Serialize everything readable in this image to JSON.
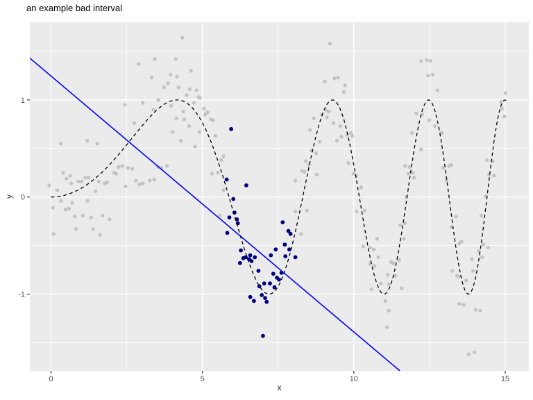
{
  "chart_data": {
    "type": "scatter",
    "title": "an example bad interval",
    "xlabel": "x",
    "ylabel": "y",
    "xlim": [
      -0.7,
      15.78
    ],
    "ylim": [
      -1.79,
      1.8
    ],
    "x_ticks": [
      0,
      5,
      10,
      15
    ],
    "x_minor_gridlines": [
      2.5,
      7.5,
      12.5
    ],
    "y_ticks": [
      -1,
      0,
      1
    ],
    "y_minor_gridlines": [
      -1.5,
      -0.5,
      0.5,
      1.5
    ],
    "grid": "on",
    "legend_position": "none",
    "colors": {
      "panel_background": "#EBEBEB",
      "gridline": "#FFFFFF",
      "tick_mark": "#333333",
      "tick_label": "#4D4D4D",
      "axis_title": "#2b2b2b",
      "title_text": "#000000",
      "background_points": "#C3C3C3",
      "highlighted_points": "#000080",
      "curve": "#000000",
      "interval_line": "#0000FF"
    },
    "series": [
      {
        "name": "background-points",
        "type": "scatter",
        "color": "#C3C3C3",
        "radius": 2.7,
        "points": [
          [
            -0.06,
            0.12
          ],
          [
            0.06,
            -0.11
          ],
          [
            0.08,
            -0.38
          ],
          [
            0.21,
            0.07
          ],
          [
            0.32,
            0.55
          ],
          [
            0.33,
            -0.04
          ],
          [
            0.4,
            0.25
          ],
          [
            0.48,
            -0.13
          ],
          [
            0.51,
            0.19
          ],
          [
            0.59,
            -0.12
          ],
          [
            0.63,
            0.22
          ],
          [
            0.67,
            0.14
          ],
          [
            0.7,
            -0.06
          ],
          [
            0.78,
            -0.2
          ],
          [
            0.82,
            -0.33
          ],
          [
            0.9,
            0.16
          ],
          [
            1.01,
            0.16
          ],
          [
            1.05,
            -0.19
          ],
          [
            1.13,
            0.2
          ],
          [
            1.19,
            0.58
          ],
          [
            1.2,
            -0.04
          ],
          [
            1.24,
            0.2
          ],
          [
            1.32,
            -0.21
          ],
          [
            1.39,
            -0.33
          ],
          [
            1.47,
            0.06
          ],
          [
            1.53,
            0.55
          ],
          [
            1.58,
            0.16
          ],
          [
            1.62,
            -0.39
          ],
          [
            1.7,
            -0.19
          ],
          [
            1.77,
            0.14
          ],
          [
            1.85,
            0.15
          ],
          [
            1.93,
            -0.23
          ],
          [
            2.08,
            0.25
          ],
          [
            2.15,
            0.24
          ],
          [
            2.23,
            0.31
          ],
          [
            2.35,
            0.32
          ],
          [
            2.44,
            0.95
          ],
          [
            2.46,
            0.11
          ],
          [
            2.54,
            0.3
          ],
          [
            2.69,
            0.29
          ],
          [
            2.75,
            0.76
          ],
          [
            2.8,
            0.17
          ],
          [
            2.89,
            1.37
          ],
          [
            2.92,
            0.13
          ],
          [
            3.03,
            0.14
          ],
          [
            3.03,
            0.97
          ],
          [
            3.26,
            0.17
          ],
          [
            3.32,
            1.23
          ],
          [
            3.38,
            0.9
          ],
          [
            3.41,
            0.18
          ],
          [
            3.43,
            1.42
          ],
          [
            3.53,
            0.31
          ],
          [
            3.54,
            1.0
          ],
          [
            3.64,
            0.3
          ],
          [
            3.73,
            1.13
          ],
          [
            3.83,
            0.32
          ],
          [
            3.86,
            1.17
          ],
          [
            3.95,
            1.26
          ],
          [
            3.97,
            0.94
          ],
          [
            4.02,
            0.67
          ],
          [
            4.12,
            1.42
          ],
          [
            4.14,
            0.81
          ],
          [
            4.16,
            1.24
          ],
          [
            4.21,
            1.13
          ],
          [
            4.29,
            0.58
          ],
          [
            4.34,
            1.64
          ],
          [
            4.37,
            0.88
          ],
          [
            4.4,
            0.8
          ],
          [
            4.48,
            1.05
          ],
          [
            4.56,
            0.73
          ],
          [
            4.58,
            1.11
          ],
          [
            4.62,
            1.3
          ],
          [
            4.72,
            0.97
          ],
          [
            4.75,
            0.52
          ],
          [
            4.8,
            1.1
          ],
          [
            4.87,
            1.03
          ],
          [
            4.9,
            0.67
          ],
          [
            4.91,
            1.02
          ],
          [
            5.05,
            0.91
          ],
          [
            5.09,
            0.85
          ],
          [
            5.17,
            0.87
          ],
          [
            5.28,
            0.8
          ],
          [
            5.32,
            0.24
          ],
          [
            5.35,
            0.79
          ],
          [
            5.43,
            0.63
          ],
          [
            5.51,
            0.25
          ],
          [
            5.57,
            -0.19
          ],
          [
            5.62,
            0.38
          ],
          [
            5.7,
            0.42
          ],
          [
            5.7,
            0.07
          ],
          [
            8.07,
            -0.15
          ],
          [
            8.07,
            0.17
          ],
          [
            8.26,
            -0.38
          ],
          [
            8.29,
            0.27
          ],
          [
            8.37,
            0.26
          ],
          [
            8.41,
            0.37
          ],
          [
            8.45,
            -0.14
          ],
          [
            8.52,
            0.33
          ],
          [
            8.55,
            0.69
          ],
          [
            8.6,
            0.48
          ],
          [
            8.68,
            0.81
          ],
          [
            8.75,
            0.45
          ],
          [
            8.78,
            0.23
          ],
          [
            8.87,
            0.57
          ],
          [
            8.95,
            0.85
          ],
          [
            9.04,
            1.19
          ],
          [
            9.11,
            0.89
          ],
          [
            9.11,
            0.82
          ],
          [
            9.18,
            0.88
          ],
          [
            9.21,
            1.58
          ],
          [
            9.33,
            0.76
          ],
          [
            9.36,
            1.22
          ],
          [
            9.44,
            0.58
          ],
          [
            9.48,
            1.23
          ],
          [
            9.55,
            0.73
          ],
          [
            9.59,
            0.62
          ],
          [
            9.67,
            1.08
          ],
          [
            9.71,
            1.15
          ],
          [
            9.78,
            0.64
          ],
          [
            9.82,
            0.35
          ],
          [
            9.9,
            0.66
          ],
          [
            9.95,
            0.63
          ],
          [
            9.98,
            0.24
          ],
          [
            10.09,
            0.22
          ],
          [
            10.24,
            0.1
          ],
          [
            10.09,
            -0.15
          ],
          [
            10.31,
            -0.51
          ],
          [
            10.35,
            -0.14
          ],
          [
            10.54,
            -0.52
          ],
          [
            10.54,
            -0.69
          ],
          [
            10.58,
            -0.95
          ],
          [
            10.66,
            -0.54
          ],
          [
            10.69,
            -0.71
          ],
          [
            10.77,
            -0.43
          ],
          [
            10.81,
            -0.62
          ],
          [
            10.89,
            -0.89
          ],
          [
            11.04,
            -1.07
          ],
          [
            11.1,
            -1.34
          ],
          [
            11.12,
            -0.8
          ],
          [
            11.16,
            -0.9
          ],
          [
            11.16,
            -1.17
          ],
          [
            11.23,
            -0.67
          ],
          [
            11.3,
            -0.68
          ],
          [
            11.38,
            -0.81
          ],
          [
            11.5,
            -0.65
          ],
          [
            11.54,
            -0.29
          ],
          [
            11.58,
            -0.94
          ],
          [
            11.65,
            -0.43
          ],
          [
            11.69,
            -0.27
          ],
          [
            11.69,
            0.32
          ],
          [
            11.73,
            0.0
          ],
          [
            11.8,
            0.24
          ],
          [
            11.84,
            0.31
          ],
          [
            11.92,
            0.66
          ],
          [
            11.95,
            0.25
          ],
          [
            11.99,
            0.2
          ],
          [
            12.07,
            0.86
          ],
          [
            12.22,
            0.49
          ],
          [
            12.22,
            1.4
          ],
          [
            12.26,
            0.85
          ],
          [
            12.41,
            1.41
          ],
          [
            12.45,
            1.25
          ],
          [
            12.49,
            0.79
          ],
          [
            12.53,
            1.4
          ],
          [
            12.6,
            1.26
          ],
          [
            12.68,
            0.73
          ],
          [
            12.76,
            1.1
          ],
          [
            12.91,
            0.66
          ],
          [
            12.95,
            0.3
          ],
          [
            13.06,
            0.17
          ],
          [
            13.14,
            0.32
          ],
          [
            13.22,
            0.33
          ],
          [
            13.22,
            -0.31
          ],
          [
            13.25,
            -0.76
          ],
          [
            13.37,
            -0.2
          ],
          [
            13.41,
            -0.81
          ],
          [
            13.48,
            -0.48
          ],
          [
            13.48,
            -0.82
          ],
          [
            13.48,
            -1.1
          ],
          [
            13.56,
            -0.46
          ],
          [
            13.63,
            -1.11
          ],
          [
            13.71,
            -0.86
          ],
          [
            13.79,
            -1.62
          ],
          [
            13.9,
            -0.64
          ],
          [
            13.94,
            -0.76
          ],
          [
            13.98,
            -1.6
          ],
          [
            14.02,
            -1.16
          ],
          [
            14.13,
            -0.56
          ],
          [
            14.17,
            -1.17
          ],
          [
            14.21,
            -0.19
          ],
          [
            14.24,
            -0.62
          ],
          [
            14.28,
            -0.49
          ],
          [
            14.36,
            0.01
          ],
          [
            14.4,
            0.38
          ],
          [
            14.43,
            -0.52
          ],
          [
            14.47,
            0.23
          ],
          [
            14.59,
            0.37
          ],
          [
            14.63,
            0.22
          ],
          [
            14.86,
            0.98
          ],
          [
            14.89,
            0.91
          ],
          [
            14.97,
            0.83
          ],
          [
            15.01,
            1.07
          ]
        ]
      },
      {
        "name": "highlighted-points",
        "type": "scatter",
        "color": "#000080",
        "radius": 2.9,
        "points": [
          [
            5.8,
            0.18
          ],
          [
            5.95,
            0.7
          ],
          [
            6.02,
            -0.02
          ],
          [
            6.45,
            0.12
          ],
          [
            5.82,
            -0.37
          ],
          [
            5.89,
            -0.21
          ],
          [
            6.06,
            -0.16
          ],
          [
            6.14,
            -0.23
          ],
          [
            6.17,
            -0.27
          ],
          [
            6.24,
            -0.68
          ],
          [
            6.27,
            -0.55
          ],
          [
            6.35,
            -0.63
          ],
          [
            6.43,
            -0.62
          ],
          [
            6.54,
            -0.64
          ],
          [
            6.58,
            -0.6
          ],
          [
            6.62,
            -0.66
          ],
          [
            6.73,
            -0.62
          ],
          [
            6.58,
            -1.03
          ],
          [
            6.7,
            -1.07
          ],
          [
            6.85,
            -0.76
          ],
          [
            6.88,
            -0.92
          ],
          [
            6.96,
            -1.01
          ],
          [
            7.04,
            -0.89
          ],
          [
            7.07,
            -1.04
          ],
          [
            7.12,
            -1.08
          ],
          [
            7.23,
            -0.89
          ],
          [
            7.26,
            -0.6
          ],
          [
            7.34,
            -0.79
          ],
          [
            7.38,
            -0.93
          ],
          [
            7.42,
            -0.54
          ],
          [
            7.46,
            -0.83
          ],
          [
            7.53,
            -0.85
          ],
          [
            7.61,
            -0.78
          ],
          [
            7.65,
            -0.26
          ],
          [
            7.72,
            -0.49
          ],
          [
            7.74,
            -0.61
          ],
          [
            7.84,
            -0.35
          ],
          [
            7.87,
            -0.54
          ],
          [
            7.91,
            -0.38
          ],
          [
            8.07,
            -0.62
          ],
          [
            7.0,
            -1.43
          ]
        ]
      },
      {
        "name": "true-curve",
        "type": "function-line",
        "formula": "y = sin(x^2 / 11)",
        "denominator": 11,
        "x_min": 0,
        "x_max": 15.05,
        "samples": 360,
        "color": "#000000",
        "width": 1.3,
        "dash": "5,4"
      },
      {
        "name": "bad-interval-line",
        "type": "line",
        "x1": -0.7,
        "y1": 1.43,
        "x2": 11.52,
        "y2": -1.79,
        "color": "#0000FF",
        "width": 1.6
      }
    ]
  }
}
